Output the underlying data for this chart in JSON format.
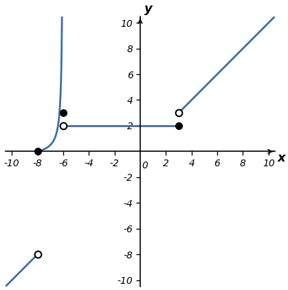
{
  "line_color": "#3a6fa8",
  "line_width": 2.0,
  "xlim": [
    -10.5,
    10.5
  ],
  "ylim": [
    -10.5,
    10.5
  ],
  "xticks": [
    -10,
    -8,
    -6,
    -4,
    -2,
    2,
    4,
    6,
    8,
    10
  ],
  "yticks": [
    -10,
    -8,
    -6,
    -4,
    -2,
    2,
    4,
    6,
    8,
    10
  ],
  "x_zero_label": "0",
  "xlabel": "x",
  "ylabel": "y",
  "seg1_slope": 1,
  "seg1_intercept": 0,
  "seg1_x_start": -10.5,
  "seg1_x_end": -8,
  "seg1_open_circle": [
    -8,
    -8
  ],
  "seg2_closed_circle": [
    -8,
    0
  ],
  "seg3_closed_circle": [
    -6,
    3
  ],
  "seg4_open_circle": [
    -6,
    2
  ],
  "seg4_closed_circle": [
    3,
    2
  ],
  "seg4_y": 2,
  "seg5_open_circle": [
    3,
    3
  ],
  "seg5_slope": 1,
  "seg5_intercept": 0,
  "seg5_x_start": 3,
  "seg5_x_end": 10.5,
  "circle_size": 7,
  "bg_color": "#ffffff"
}
